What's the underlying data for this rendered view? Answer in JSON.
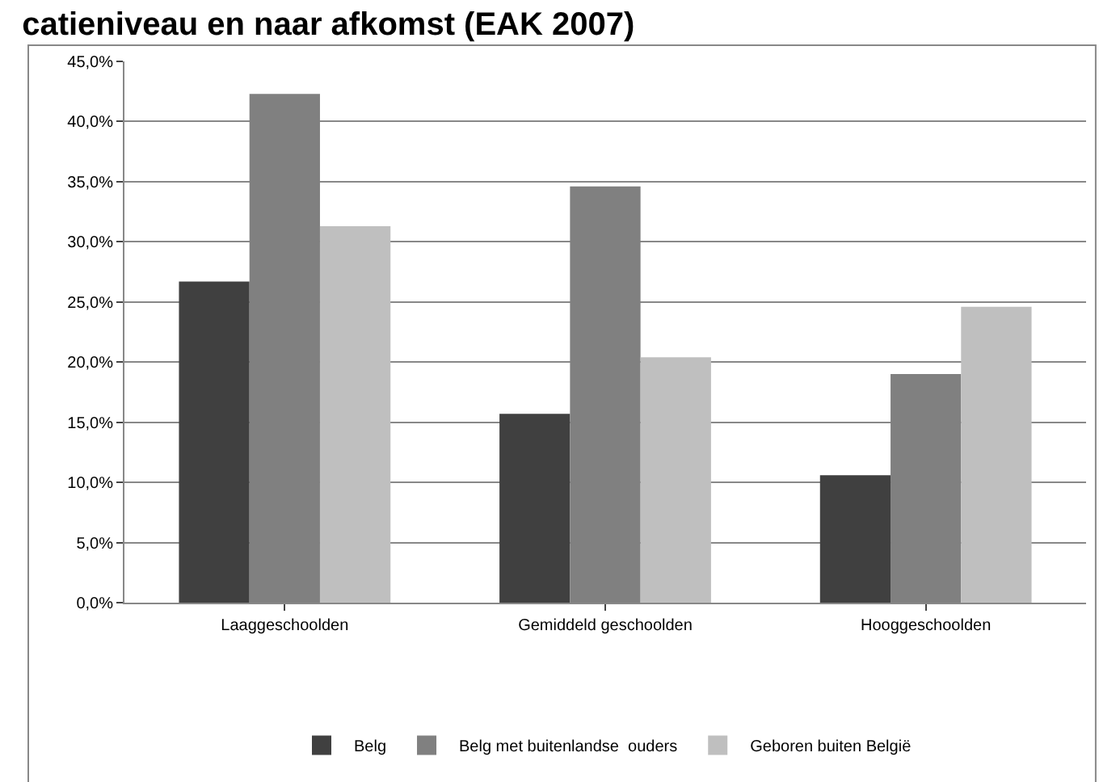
{
  "chart_data": {
    "type": "bar",
    "title": "catieniveau en naar afkomst (EAK 2007)",
    "categories": [
      "Laaggeschoolden",
      "Gemiddeld geschoolden",
      "Hooggeschoolden"
    ],
    "series": [
      {
        "name": "Belg",
        "color": "#404040",
        "values": [
          26.7,
          15.7,
          10.6
        ]
      },
      {
        "name": "Belg met buitenlandse  ouders",
        "color": "#808080",
        "values": [
          42.3,
          34.6,
          19.0
        ]
      },
      {
        "name": "Geboren buiten België",
        "color": "#bfbfbf",
        "values": [
          31.3,
          20.4,
          24.6
        ]
      }
    ],
    "ylim": [
      0,
      45
    ],
    "yticks": [
      {
        "value": 0,
        "label": "0,0%"
      },
      {
        "value": 5,
        "label": "5,0%"
      },
      {
        "value": 10,
        "label": "10,0%"
      },
      {
        "value": 15,
        "label": "15,0%"
      },
      {
        "value": 20,
        "label": "20,0%"
      },
      {
        "value": 25,
        "label": "25,0%"
      },
      {
        "value": 30,
        "label": "30,0%"
      },
      {
        "value": 35,
        "label": "35,0%"
      },
      {
        "value": 40,
        "label": "40,0%"
      },
      {
        "value": 45,
        "label": "45,0%"
      }
    ],
    "grid": "y",
    "legend": "bottom"
  }
}
